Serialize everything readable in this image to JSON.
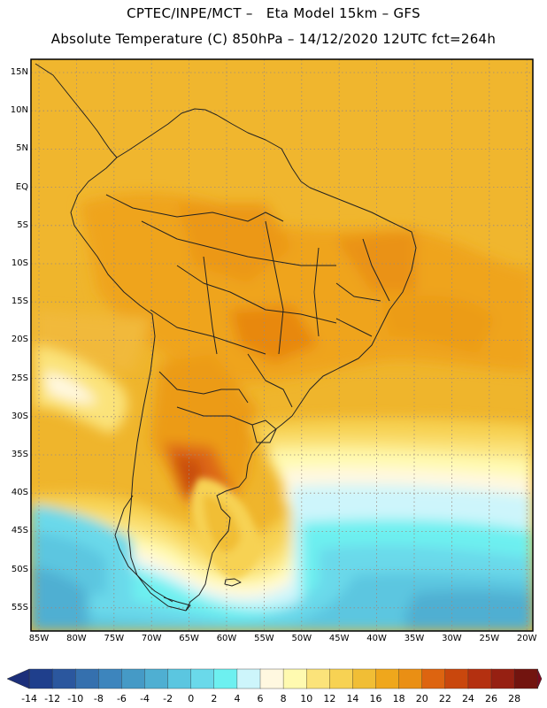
{
  "title": {
    "line1": "CPTEC/INPE/MCT –   Eta Model 15km – GFS",
    "line2": "Absolute Temperature (C) 850hPa – 14/12/2020 12UTC fct=264h"
  },
  "lat_ticks": [
    "15N",
    "10N",
    "5N",
    "EQ",
    "5S",
    "10S",
    "15S",
    "20S",
    "25S",
    "30S",
    "35S",
    "40S",
    "45S",
    "50S",
    "55S"
  ],
  "lon_ticks": [
    "85W",
    "80W",
    "75W",
    "70W",
    "65W",
    "60W",
    "55W",
    "50W",
    "45W",
    "40W",
    "35W",
    "30W",
    "25W",
    "20W"
  ],
  "colorbar": {
    "labels": [
      "-14",
      "-12",
      "-10",
      "-8",
      "-6",
      "-4",
      "-2",
      "0",
      "2",
      "4",
      "6",
      "8",
      "10",
      "12",
      "14",
      "16",
      "18",
      "20",
      "22",
      "24",
      "26",
      "28"
    ],
    "colors": [
      "#1f3f8c",
      "#2b579e",
      "#3570ae",
      "#3d85bd",
      "#459ac6",
      "#4fafd2",
      "#5bc6e0",
      "#6ad9ea",
      "#6df0f0",
      "#cdf5fb",
      "#fff8e0",
      "#fffab0",
      "#fbe37a",
      "#f7d253",
      "#f1be35",
      "#efa71c",
      "#ea8f14",
      "#dd6410",
      "#c9470d",
      "#b43010",
      "#962012",
      "#72140f"
    ],
    "under_color": "#1c2f7a",
    "over_color": "#7a0a1e"
  }
}
